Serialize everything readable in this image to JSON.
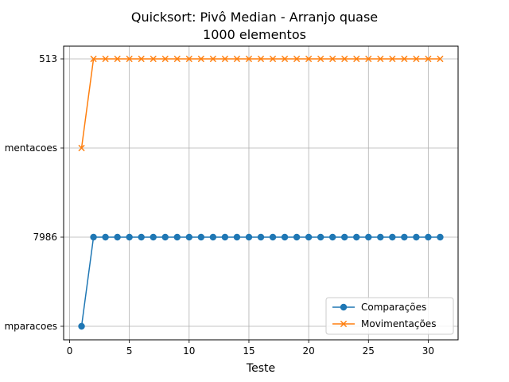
{
  "chart_data": {
    "type": "line",
    "title_line1": "Quicksort: Pivô Median - Arranjo quase",
    "title_line2": "1000 elementos",
    "xlabel": "Teste",
    "ylabel": "",
    "x_ticks": [
      "0",
      "5",
      "10",
      "15",
      "20",
      "25",
      "30"
    ],
    "y_tick_labels": [
      "comparacoes",
      "7986",
      "movimentacoes",
      "513"
    ],
    "y_tick_labels_shown": [
      "mparacoes",
      "7986",
      "mentacoes",
      "513"
    ],
    "xlim": [
      -0.5,
      32.5
    ],
    "grid": true,
    "legend_position": "lower-right",
    "x": [
      1,
      2,
      3,
      4,
      5,
      6,
      7,
      8,
      9,
      10,
      11,
      12,
      13,
      14,
      15,
      16,
      17,
      18,
      19,
      20,
      21,
      22,
      23,
      24,
      25,
      26,
      27,
      28,
      29,
      30,
      31
    ],
    "series": [
      {
        "name": "Comparações",
        "color": "#1f77b4",
        "marker": "circle",
        "values": [
          "comparacoes",
          "7986",
          "7986",
          "7986",
          "7986",
          "7986",
          "7986",
          "7986",
          "7986",
          "7986",
          "7986",
          "7986",
          "7986",
          "7986",
          "7986",
          "7986",
          "7986",
          "7986",
          "7986",
          "7986",
          "7986",
          "7986",
          "7986",
          "7986",
          "7986",
          "7986",
          "7986",
          "7986",
          "7986",
          "7986",
          "7986"
        ]
      },
      {
        "name": "Movimentações",
        "color": "#ff7f0e",
        "marker": "x",
        "values": [
          "movimentacoes",
          "513",
          "513",
          "513",
          "513",
          "513",
          "513",
          "513",
          "513",
          "513",
          "513",
          "513",
          "513",
          "513",
          "513",
          "513",
          "513",
          "513",
          "513",
          "513",
          "513",
          "513",
          "513",
          "513",
          "513",
          "513",
          "513",
          "513",
          "513",
          "513",
          "513"
        ]
      }
    ]
  }
}
